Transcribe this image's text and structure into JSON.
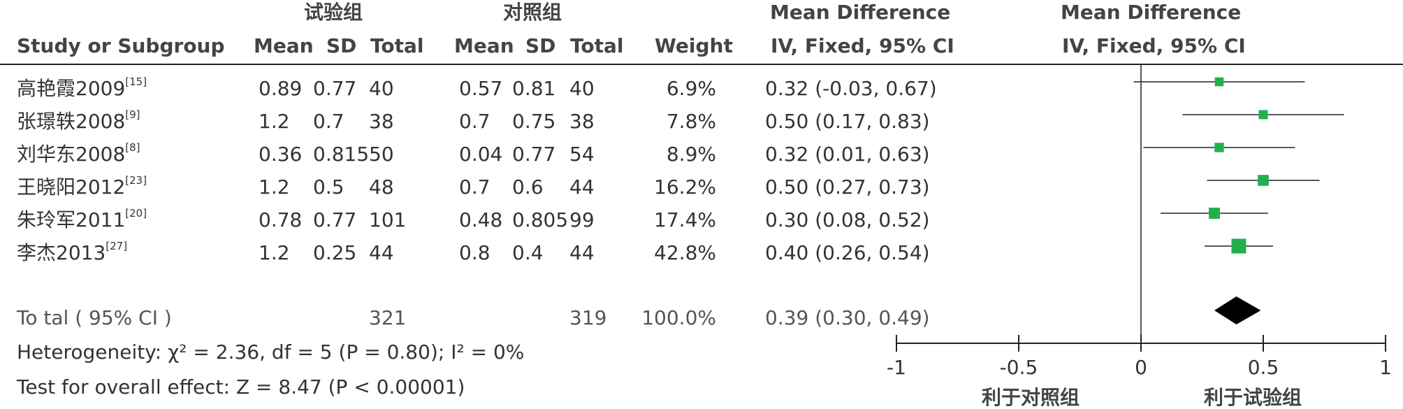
{
  "header": {
    "group_exp": "试验组",
    "group_ctrl": "对照组",
    "study_col": "Study or Subgroup",
    "mean": "Mean",
    "sd": "SD",
    "total": "Total",
    "weight": "Weight",
    "md_title": "Mean Difference",
    "md_method": "IV, Fixed, 95% CI",
    "plot_title": "Mean Difference",
    "plot_method": "IV, Fixed, 95% CI"
  },
  "studies": [
    {
      "name": "高艳霞2009",
      "ref": "[15]",
      "exp_mean": "0.89",
      "exp_sd": "0.77",
      "exp_total": "40",
      "ctrl_mean": "0.57",
      "ctrl_sd": "0.81",
      "ctrl_total": "40",
      "weight": "6.9%",
      "ci_text": "0.32 (-0.03, 0.67)"
    },
    {
      "name": "张璟轶2008",
      "ref": "[9]",
      "exp_mean": "1.2",
      "exp_sd": "0.7",
      "exp_total": "38",
      "ctrl_mean": "0.7",
      "ctrl_sd": "0.75",
      "ctrl_total": "38",
      "weight": "7.8%",
      "ci_text": "0.50 (0.17, 0.83)"
    },
    {
      "name": "刘华东2008",
      "ref": "[8]",
      "exp_mean": "0.36",
      "exp_sd": "0.815",
      "exp_total": "50",
      "ctrl_mean": "0.04",
      "ctrl_sd": "0.77",
      "ctrl_total": "54",
      "weight": "8.9%",
      "ci_text": "0.32 (0.01, 0.63)"
    },
    {
      "name": "王晓阳2012",
      "ref": "[23]",
      "exp_mean": "1.2",
      "exp_sd": "0.5",
      "exp_total": "48",
      "ctrl_mean": "0.7",
      "ctrl_sd": "0.6",
      "ctrl_total": "44",
      "weight": "16.2%",
      "ci_text": "0.50 (0.27, 0.73)"
    },
    {
      "name": "朱玲军2011",
      "ref": "[20]",
      "exp_mean": "0.78",
      "exp_sd": "0.77",
      "exp_total": "101",
      "ctrl_mean": "0.48",
      "ctrl_sd": "0.805",
      "ctrl_total": "99",
      "weight": "17.4%",
      "ci_text": "0.30 (0.08, 0.52)"
    },
    {
      "name": "李杰2013",
      "ref": "[27]",
      "exp_mean": "1.2",
      "exp_sd": "0.25",
      "exp_total": "44",
      "ctrl_mean": "0.8",
      "ctrl_sd": "0.4",
      "ctrl_total": "44",
      "weight": "42.8%",
      "ci_text": "0.40 (0.26, 0.54)"
    }
  ],
  "total": {
    "label": "To tal ( 95% CI )",
    "exp_total": "321",
    "ctrl_total": "319",
    "weight": "100.0%",
    "ci_text": "0.39 (0.30, 0.49)"
  },
  "heterogeneity": "Heterogeneity: χ² = 2.36, df = 5 (P = 0.80); I² = 0%",
  "overall_effect": "Test for overall effect: Z = 8.47 (P < 0.00001)",
  "axis": {
    "favours_ctrl": "利于对照组",
    "favours_exp": "利于试验组"
  },
  "colors": {
    "marker": "#22b04b",
    "diamond": "#000000",
    "line": "#222222"
  },
  "chart_data": {
    "type": "forest",
    "x": {
      "min": -1,
      "max": 1,
      "ticks": [
        -1,
        -0.5,
        0,
        0.5,
        1
      ],
      "tick_labels": [
        "-1",
        "-0.5",
        "0",
        "0.5",
        "1"
      ]
    },
    "studies": [
      {
        "name": "高艳霞2009",
        "md": 0.32,
        "lo": -0.03,
        "hi": 0.67,
        "weight": 6.9
      },
      {
        "name": "张璟轶2008",
        "md": 0.5,
        "lo": 0.17,
        "hi": 0.83,
        "weight": 7.8
      },
      {
        "name": "刘华东2008",
        "md": 0.32,
        "lo": 0.01,
        "hi": 0.63,
        "weight": 8.9
      },
      {
        "name": "王晓阳2012",
        "md": 0.5,
        "lo": 0.27,
        "hi": 0.73,
        "weight": 16.2
      },
      {
        "name": "朱玲军2011",
        "md": 0.3,
        "lo": 0.08,
        "hi": 0.52,
        "weight": 17.4
      },
      {
        "name": "李杰2013",
        "md": 0.4,
        "lo": 0.26,
        "hi": 0.54,
        "weight": 42.8
      }
    ],
    "pooled": {
      "md": 0.39,
      "lo": 0.3,
      "hi": 0.49
    }
  }
}
